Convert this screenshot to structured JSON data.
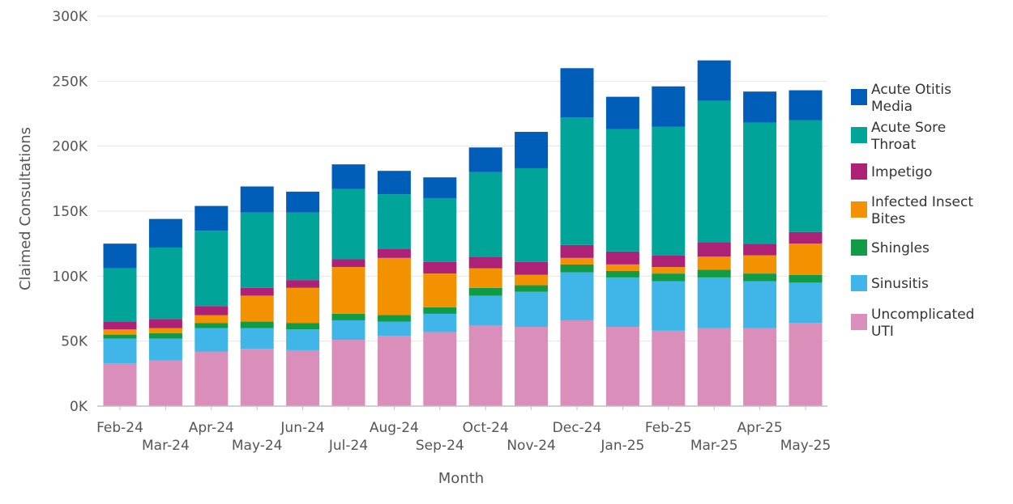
{
  "chart_data": {
    "type": "bar",
    "stacked": true,
    "xlabel": "Month",
    "ylabel": "Claimed Consultations",
    "ylim": [
      0,
      300000
    ],
    "yticks": [
      0,
      50000,
      100000,
      150000,
      200000,
      250000,
      300000
    ],
    "ytick_labels": [
      "0K",
      "50K",
      "100K",
      "150K",
      "200K",
      "250K",
      "300K"
    ],
    "grid": true,
    "legend_position": "right",
    "categories": [
      "Feb-24",
      "Mar-24",
      "Apr-24",
      "May-24",
      "Jun-24",
      "Jul-24",
      "Aug-24",
      "Sep-24",
      "Oct-24",
      "Nov-24",
      "Dec-24",
      "Jan-25",
      "Feb-25",
      "Mar-25",
      "Apr-25",
      "May-25"
    ],
    "series": [
      {
        "name": "Uncomplicated UTI",
        "color": "#d98fb9",
        "values": [
          33000,
          35000,
          42000,
          44000,
          43000,
          51000,
          54000,
          57000,
          62000,
          61000,
          66000,
          61000,
          58000,
          60000,
          60000,
          64000
        ]
      },
      {
        "name": "Sinusitis",
        "color": "#3fb5e8",
        "values": [
          19000,
          17000,
          18000,
          16000,
          16000,
          15000,
          11000,
          14000,
          23000,
          27000,
          37000,
          38000,
          38000,
          39000,
          36000,
          31000
        ]
      },
      {
        "name": "Shingles",
        "color": "#129b47",
        "values": [
          3000,
          4000,
          4000,
          5000,
          5000,
          5000,
          5000,
          5000,
          6000,
          5000,
          6000,
          5000,
          6000,
          6000,
          6000,
          6000
        ]
      },
      {
        "name": "Infected Insect Bites",
        "color": "#f39200",
        "values": [
          4000,
          4000,
          6000,
          20000,
          27000,
          36000,
          44000,
          26000,
          15000,
          8000,
          5000,
          5000,
          5000,
          10000,
          14000,
          24000
        ]
      },
      {
        "name": "Impetigo",
        "color": "#ad2276",
        "values": [
          6000,
          7000,
          7000,
          6000,
          6000,
          6000,
          7000,
          9000,
          9000,
          10000,
          10000,
          10000,
          9000,
          11000,
          9000,
          9000
        ]
      },
      {
        "name": "Acute Sore Throat",
        "color": "#00a499",
        "values": [
          41000,
          55000,
          58000,
          58000,
          52000,
          54000,
          42000,
          49000,
          65000,
          72000,
          98000,
          94000,
          99000,
          109000,
          93000,
          86000
        ]
      },
      {
        "name": "Acute Otitis Media",
        "color": "#005eb8",
        "values": [
          19000,
          22000,
          19000,
          20000,
          16000,
          19000,
          18000,
          16000,
          19000,
          28000,
          38000,
          25000,
          31000,
          31000,
          24000,
          23000
        ]
      }
    ],
    "legend_order": [
      "Acute Otitis Media",
      "Acute Sore Throat",
      "Impetigo",
      "Infected Insect Bites",
      "Shingles",
      "Sinusitis",
      "Uncomplicated UTI"
    ],
    "legend_labels": [
      [
        "Acute Otitis",
        "Media"
      ],
      [
        "Acute Sore",
        "Throat"
      ],
      [
        "Impetigo"
      ],
      [
        "Infected Insect",
        "Bites"
      ],
      [
        "Shingles"
      ],
      [
        "Sinusitis"
      ],
      [
        "Uncomplicated",
        "UTI"
      ]
    ]
  }
}
